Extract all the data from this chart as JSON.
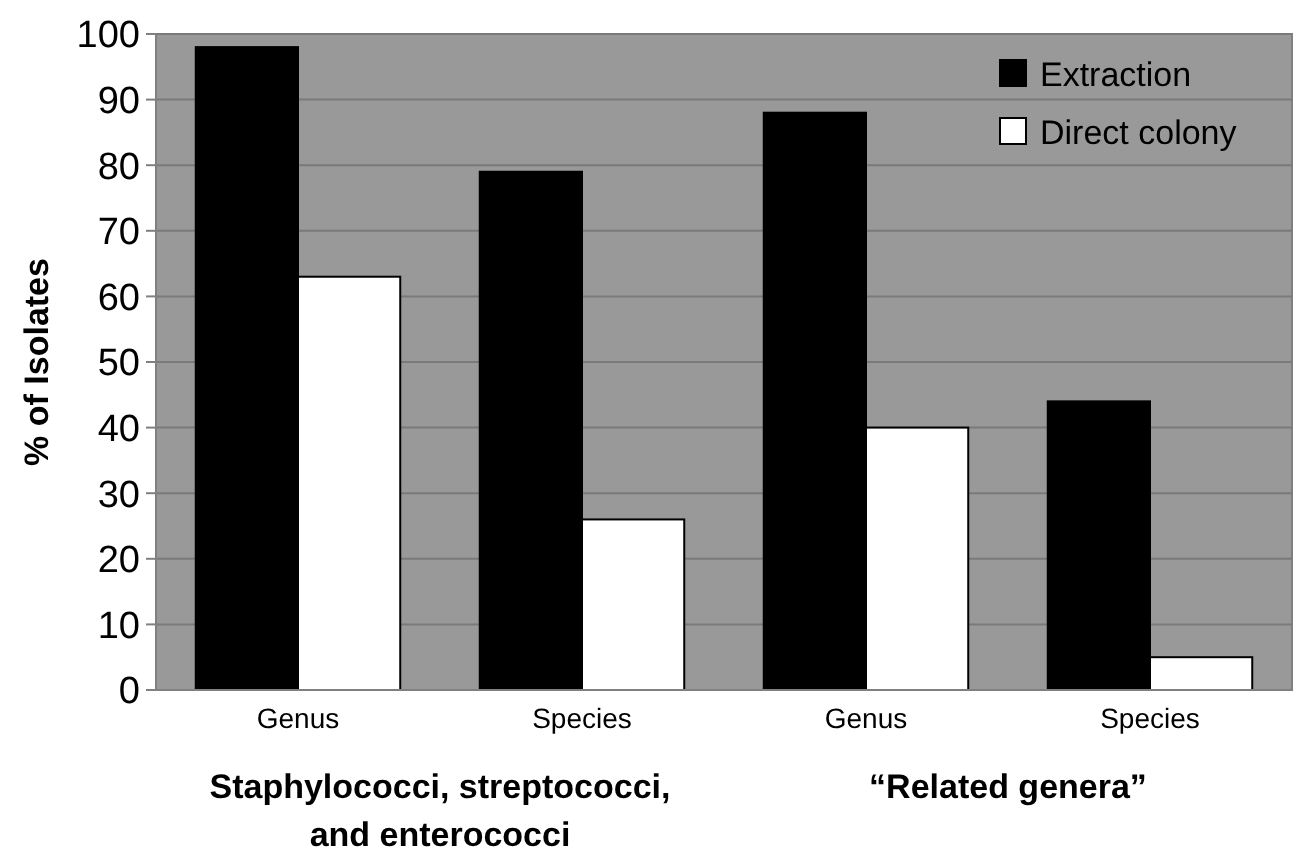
{
  "chart_data": {
    "type": "bar",
    "ylabel": "% of Isolates",
    "categories": [
      "Genus",
      "Species",
      "Genus",
      "Species"
    ],
    "series": [
      {
        "name": "Extraction",
        "color": "#000000",
        "values": [
          98,
          79,
          88,
          44
        ]
      },
      {
        "name": "Direct colony",
        "color": "#ffffff",
        "values": [
          63,
          26,
          40,
          5
        ]
      }
    ],
    "ylim": [
      0,
      100
    ],
    "yticks": [
      0,
      10,
      20,
      30,
      40,
      50,
      60,
      70,
      80,
      90,
      100
    ],
    "grid": "y",
    "legend": "top right",
    "annotations": [
      "Staphylococci, streptococci, and enterococci",
      "“Related genera”"
    ]
  }
}
